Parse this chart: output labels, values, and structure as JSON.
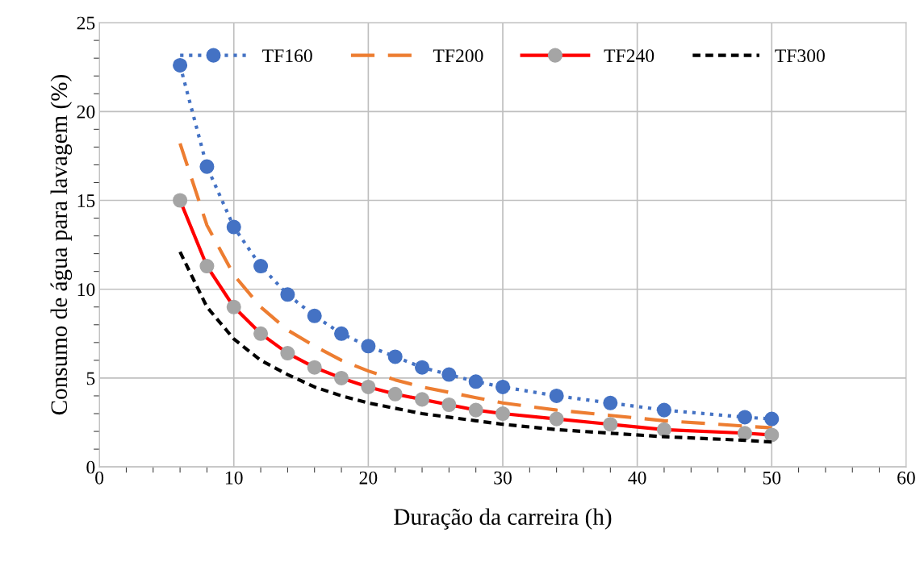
{
  "chart_data": {
    "type": "line",
    "xlabel": "Duração da carreira (h)",
    "ylabel": "Consumo de água para lavagem (%)",
    "x": [
      6,
      8,
      10,
      12,
      14,
      16,
      18,
      20,
      22,
      24,
      26,
      28,
      30,
      34,
      38,
      42,
      48,
      50
    ],
    "series": [
      {
        "name": "TF160",
        "color": "#4472c4",
        "marker": "circle",
        "line_style": "dotted",
        "values": [
          22.6,
          16.9,
          13.5,
          11.3,
          9.7,
          8.5,
          7.5,
          6.8,
          6.2,
          5.6,
          5.2,
          4.8,
          4.5,
          4.0,
          3.6,
          3.2,
          2.8,
          2.7
        ]
      },
      {
        "name": "TF200",
        "color": "#ed7d31",
        "marker": "none",
        "line_style": "dashed",
        "values": [
          18.2,
          13.6,
          10.8,
          9.0,
          7.7,
          6.8,
          6.0,
          5.4,
          4.9,
          4.5,
          4.2,
          3.9,
          3.6,
          3.2,
          2.9,
          2.6,
          2.3,
          2.2
        ]
      },
      {
        "name": "TF240",
        "color": "#ff0000",
        "marker": "circle",
        "colors": [
          "#a5a5a5",
          "#a5a5a5",
          "#a5a5a5",
          "#a5a5a5",
          "#a5a5a5",
          "#a5a5a5",
          "#a5a5a5",
          "#a5a5a5",
          "#a5a5a5",
          "#a5a5a5",
          "#a5a5a5",
          "#a5a5a5",
          "#a5a5a5",
          "#a5a5a5",
          "#a5a5a5",
          "#a5a5a5",
          "#a5a5a5",
          "#a5a5a5"
        ],
        "line_style": "solid",
        "values": [
          15.0,
          11.3,
          9.0,
          7.5,
          6.4,
          5.6,
          5.0,
          4.5,
          4.1,
          3.8,
          3.5,
          3.2,
          3.0,
          2.7,
          2.4,
          2.1,
          1.9,
          1.8
        ]
      },
      {
        "name": "TF300",
        "color": "#000000",
        "marker": "none",
        "line_style": "short_dashed",
        "values": [
          12.1,
          9.0,
          7.2,
          6.0,
          5.2,
          4.5,
          4.0,
          3.6,
          3.3,
          3.0,
          2.8,
          2.6,
          2.4,
          2.1,
          1.9,
          1.7,
          1.5,
          1.4
        ]
      }
    ],
    "xlim": [
      0,
      60
    ],
    "xticks": [
      0,
      10,
      20,
      30,
      40,
      50,
      60
    ],
    "ylim": [
      0,
      25
    ],
    "yticks": [
      0,
      5,
      10,
      15,
      20,
      25
    ],
    "grid": true,
    "legend": "top"
  }
}
